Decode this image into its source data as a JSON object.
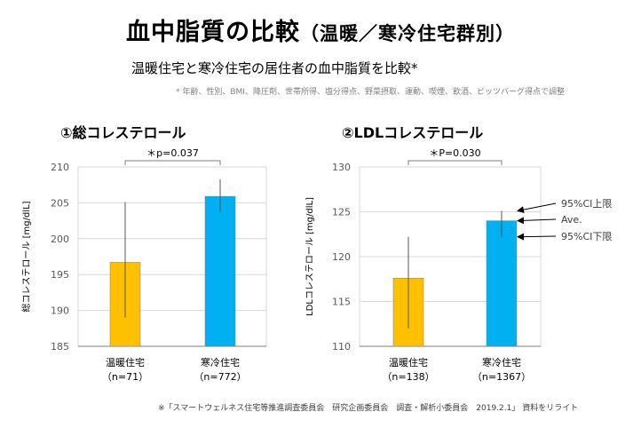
{
  "title": {
    "main": "血中脂質の比較",
    "sub": "（温暖／寒冷住宅群別）"
  },
  "subtitle": "温暖住宅と寒冷住宅の居住者の血中脂質を比較*",
  "note": "* 年齢、性別、BMI、降圧剤、世帯所得、塩分得点、野菜摂取、運動、喫煙、飲酒、ピッツバーグ得点で調整",
  "footer": "※「スマートウェルネス住宅等推進調査委員会　研究企画委員会　調査・解析小委員会　2019.2.1」 資料をリライト",
  "colors": {
    "warm": "#FFC000",
    "cold": "#00B0F0",
    "grid": "#d9d9d9",
    "axis": "#7f7f7f",
    "err": "#595959"
  },
  "chart_data": [
    {
      "type": "bar",
      "title": "①総コレステロール",
      "ylabel": "総コレステロール [mg/dlL]",
      "ylim": [
        185,
        210
      ],
      "yticks": [
        185,
        190,
        195,
        200,
        205,
        210
      ],
      "categories": [
        "温暖住宅",
        "寒冷住宅"
      ],
      "counts": [
        "（n=71）",
        "（n=772）"
      ],
      "values": [
        196.7,
        205.9
      ],
      "ci_lower": [
        189.0,
        203.7
      ],
      "ci_upper": [
        205.1,
        208.3
      ],
      "significance": "＊p=0.037",
      "grid": true
    },
    {
      "type": "bar",
      "title": "②LDLコレステロール",
      "ylabel": "LDLコレステロール [mg/dlL]",
      "ylim": [
        110,
        130
      ],
      "yticks": [
        110,
        115,
        120,
        125,
        130
      ],
      "categories": [
        "温暖住宅",
        "寒冷住宅"
      ],
      "counts": [
        "（n=138）",
        "（n=1367）"
      ],
      "values": [
        117.6,
        124.0
      ],
      "ci_lower": [
        112.0,
        122.2
      ],
      "ci_upper": [
        122.2,
        125.1
      ],
      "significance": "＊P=0.030",
      "grid": true,
      "annotations": [
        "95%CI上限",
        "Ave.",
        "95%CI下限"
      ]
    }
  ]
}
